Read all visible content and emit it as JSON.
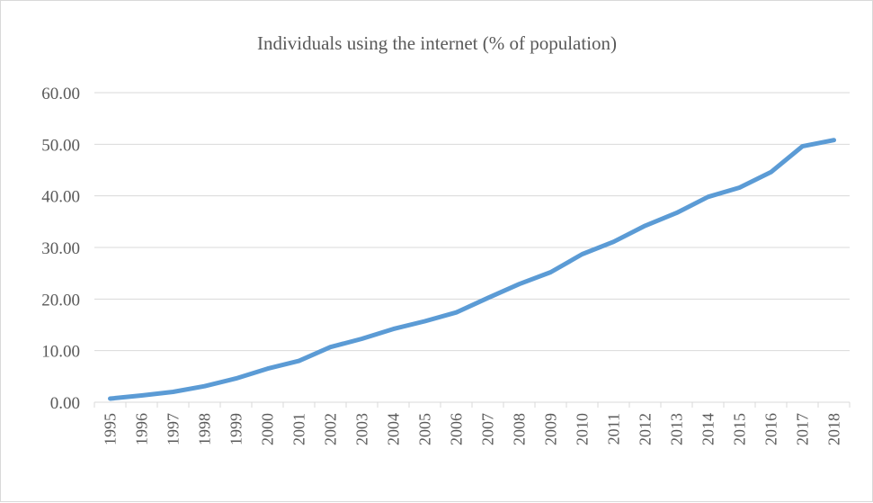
{
  "chart_data": {
    "type": "line",
    "title": "Individuals using the internet (% of population)",
    "xlabel": "",
    "ylabel": "",
    "ylim": [
      0,
      60
    ],
    "yticks": [
      "0.00",
      "10.00",
      "20.00",
      "30.00",
      "40.00",
      "50.00",
      "60.00"
    ],
    "grid": true,
    "legend": "none",
    "color": "#5b9bd5",
    "categories": [
      "1995",
      "1996",
      "1997",
      "1998",
      "1999",
      "2000",
      "2001",
      "2002",
      "2003",
      "2004",
      "2005",
      "2006",
      "2007",
      "2008",
      "2009",
      "2010",
      "2011",
      "2012",
      "2013",
      "2014",
      "2015",
      "2016",
      "2017",
      "2018"
    ],
    "series": [
      {
        "values": [
          0.7,
          1.3,
          2.0,
          3.1,
          4.6,
          6.5,
          8.0,
          10.7,
          12.3,
          14.2,
          15.7,
          17.4,
          20.2,
          22.9,
          25.2,
          28.7,
          31.1,
          34.2,
          36.7,
          39.8,
          41.6,
          44.6,
          49.6,
          50.8
        ]
      }
    ]
  }
}
